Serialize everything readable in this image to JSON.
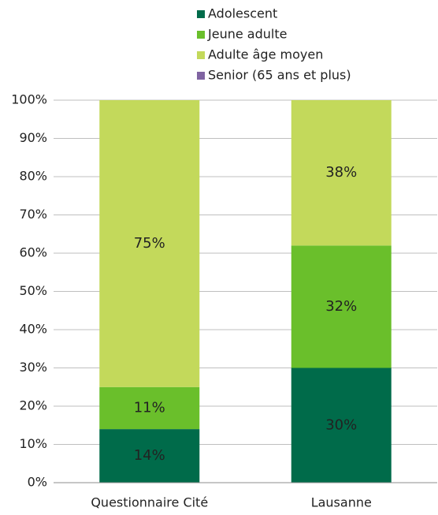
{
  "chart_data": {
    "type": "stacked_bar",
    "categories": [
      "Questionnaire Cité",
      "Lausanne"
    ],
    "series": [
      {
        "name": "Adolescent",
        "color": "#006b4a",
        "values": [
          14,
          30
        ],
        "value_labels": [
          "14%",
          "30%"
        ]
      },
      {
        "name": "Jeune adulte",
        "color": "#6abf2b",
        "values": [
          11,
          32
        ],
        "value_labels": [
          "11%",
          "32%"
        ]
      },
      {
        "name": "Adulte âge moyen",
        "color": "#c3d95b",
        "values": [
          75,
          38
        ],
        "value_labels": [
          "75%",
          "38%"
        ]
      },
      {
        "name": "Senior (65 ans et plus)",
        "color": "#8064a2",
        "values": [
          0,
          0
        ]
      }
    ],
    "ylim": [
      0,
      100
    ],
    "yticks": [
      {
        "value": 0,
        "label": "0%"
      },
      {
        "value": 10,
        "label": "10%"
      },
      {
        "value": 20,
        "label": "20%"
      },
      {
        "value": 30,
        "label": "30%"
      },
      {
        "value": 40,
        "label": "40%"
      },
      {
        "value": 50,
        "label": "50%"
      },
      {
        "value": 60,
        "label": "60%"
      },
      {
        "value": 70,
        "label": "70%"
      },
      {
        "value": 80,
        "label": "80%"
      },
      {
        "value": 90,
        "label": "90%"
      },
      {
        "value": 100,
        "label": "100%"
      }
    ],
    "grid": true,
    "legend": "top"
  }
}
